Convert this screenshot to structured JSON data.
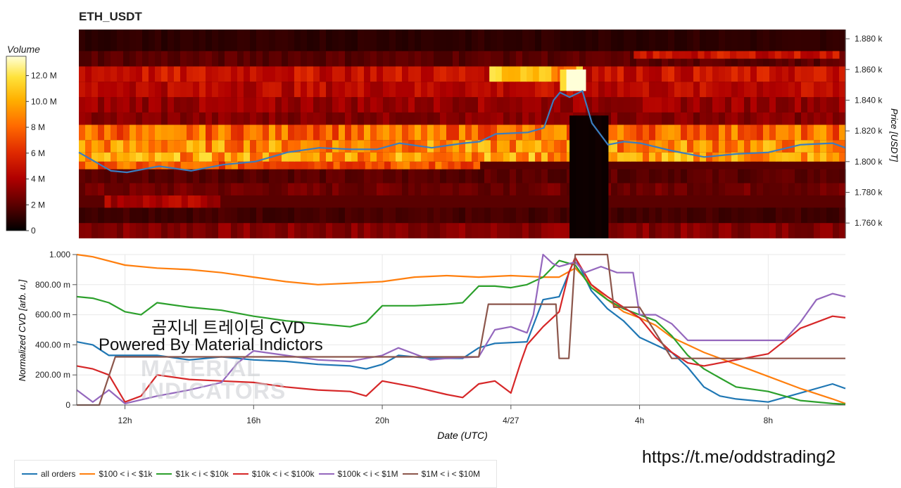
{
  "header": {
    "title": "ETH_USDT"
  },
  "colorbar": {
    "title": "Volume",
    "ticks": [
      "0",
      "2 M",
      "4 M",
      "6 M",
      "8 M",
      "10.0 M",
      "12.0 M"
    ],
    "tick_values": [
      0,
      2,
      4,
      6,
      8,
      10,
      12
    ],
    "max": 13.5,
    "colors": [
      "#000000",
      "#5c0000",
      "#b00000",
      "#e02a00",
      "#ff6a00",
      "#ffb000",
      "#ffe23a",
      "#ffffd8"
    ]
  },
  "overlay": {
    "line1": "곰지네 트레이딩 CVD",
    "line2": "Powered By Material Indictors",
    "watermark1": "MATERIAL",
    "watermark2": "INDICATORS",
    "url": "https://t.me/oddstrading2"
  },
  "chart_data": [
    {
      "type": "heatmap",
      "title": "ETH_USDT",
      "ylabel": "Price [USDT]",
      "ylim": [
        1750,
        1886
      ],
      "yticks": [
        "1.760 k",
        "1.780 k",
        "1.800 k",
        "1.820 k",
        "1.840 k",
        "1.860 k",
        "1.880 k"
      ],
      "ytick_values": [
        1760,
        1780,
        1800,
        1820,
        1840,
        1860,
        1880
      ],
      "x_range_hours": [
        10.5,
        34.4
      ],
      "price_bins": [
        1755,
        1765,
        1775,
        1785,
        1795,
        1805,
        1815,
        1825,
        1835,
        1845,
        1855,
        1865,
        1875,
        1884
      ],
      "volume_blocks_M": [
        {
          "hours": [
            10.5,
            34.4
          ],
          "price": [
            1750,
            1760
          ],
          "level": 3.0
        },
        {
          "hours": [
            10.5,
            34.4
          ],
          "price": [
            1760,
            1770
          ],
          "level": 1.5
        },
        {
          "hours": [
            11.3,
            14.9
          ],
          "price": [
            1770,
            1778
          ],
          "level": 4.0
        },
        {
          "hours": [
            10.5,
            34.4
          ],
          "price": [
            1778,
            1786
          ],
          "level": 2.5
        },
        {
          "hours": [
            10.5,
            34.4
          ],
          "price": [
            1786,
            1795
          ],
          "level": 2.0
        },
        {
          "hours": [
            10.5,
            23.0
          ],
          "price": [
            1795,
            1800
          ],
          "level": 7.5
        },
        {
          "hours": [
            10.5,
            34.4
          ],
          "price": [
            1800,
            1806
          ],
          "level": 9.5
        },
        {
          "hours": [
            10.5,
            34.4
          ],
          "price": [
            1806,
            1814
          ],
          "level": 9.0
        },
        {
          "hours": [
            10.5,
            34.4
          ],
          "price": [
            1814,
            1824
          ],
          "level": 8.0
        },
        {
          "hours": [
            10.5,
            34.4
          ],
          "price": [
            1824,
            1832
          ],
          "level": 3.0
        },
        {
          "hours": [
            10.5,
            34.4
          ],
          "price": [
            1832,
            1842
          ],
          "level": 3.5
        },
        {
          "hours": [
            10.5,
            34.4
          ],
          "price": [
            1842,
            1852
          ],
          "level": 4.5
        },
        {
          "hours": [
            10.5,
            34.4
          ],
          "price": [
            1852,
            1862
          ],
          "level": 5.0
        },
        {
          "hours": [
            23.3,
            26.2
          ],
          "price": [
            1852,
            1862
          ],
          "level": 10.0
        },
        {
          "hours": [
            25.5,
            26.3
          ],
          "price": [
            1846,
            1860
          ],
          "level": 12.5
        },
        {
          "hours": [
            10.5,
            34.4
          ],
          "price": [
            1862,
            1872
          ],
          "level": 2.0
        },
        {
          "hours": [
            27.8,
            34.2
          ],
          "price": [
            1867,
            1877
          ],
          "level": 5.0
        },
        {
          "hours": [
            10.5,
            34.4
          ],
          "price": [
            1872,
            1886
          ],
          "level": 1.0
        },
        {
          "hours": [
            25.8,
            27.0
          ],
          "price": [
            1750,
            1830
          ],
          "level": 0.3
        }
      ],
      "price_line": {
        "name": "price",
        "x": [
          10.5,
          11.0,
          11.5,
          12.0,
          13.0,
          14.0,
          15.0,
          16.0,
          17.0,
          18.0,
          19.0,
          19.8,
          20.5,
          21.5,
          22.5,
          23.0,
          23.5,
          24.5,
          25.0,
          25.3,
          25.5,
          25.8,
          26.2,
          26.5,
          27.0,
          27.5,
          28.0,
          29.0,
          30.0,
          31.0,
          32.0,
          33.0,
          34.0,
          34.4
        ],
        "y": [
          1806,
          1800,
          1794,
          1793,
          1797,
          1794,
          1798,
          1800,
          1806,
          1809,
          1808,
          1808,
          1812,
          1809,
          1812,
          1813,
          1818,
          1819,
          1822,
          1840,
          1845,
          1842,
          1846,
          1825,
          1811,
          1813,
          1812,
          1807,
          1803,
          1805,
          1806,
          1811,
          1812,
          1809
        ]
      }
    },
    {
      "type": "line",
      "xlabel": "Date (UTC)",
      "ylabel": "Normalized CVD [arb. u.]",
      "ylim": [
        0,
        1000
      ],
      "yticks": [
        "0",
        "200.00 m",
        "400.00 m",
        "600.00 m",
        "800.00 m",
        "1.000"
      ],
      "ytick_values": [
        0,
        200,
        400,
        600,
        800,
        1000
      ],
      "x_range_hours": [
        10.5,
        34.4
      ],
      "xticks": [
        "12h",
        "16h",
        "20h",
        "4/27",
        "4h",
        "8h"
      ],
      "xtick_values": [
        12,
        16,
        20,
        24,
        28,
        32
      ],
      "series": [
        {
          "name": "all orders",
          "color": "#1f77b4",
          "x": [
            10.5,
            11.0,
            11.5,
            12.0,
            13.0,
            14.0,
            15.0,
            16.0,
            17.0,
            18.0,
            19.0,
            19.5,
            20.0,
            20.5,
            21.5,
            22.5,
            23.0,
            23.5,
            24.5,
            25.0,
            25.5,
            26.0,
            26.5,
            27.0,
            27.5,
            28.0,
            28.5,
            29.0,
            29.5,
            30.0,
            30.5,
            31.0,
            32.0,
            33.0,
            34.0,
            34.4
          ],
          "y": [
            420,
            400,
            330,
            330,
            330,
            300,
            320,
            300,
            290,
            270,
            260,
            240,
            270,
            330,
            310,
            310,
            380,
            410,
            420,
            700,
            720,
            980,
            760,
            640,
            560,
            450,
            400,
            350,
            250,
            120,
            60,
            40,
            20,
            80,
            140,
            110
          ]
        },
        {
          "name": "$100 < i < $1k",
          "color": "#ff7f0e",
          "x": [
            10.5,
            11.0,
            12.0,
            13.0,
            14.0,
            15.0,
            16.0,
            17.0,
            18.0,
            19.0,
            20.0,
            21.0,
            22.0,
            23.0,
            24.0,
            25.0,
            25.5,
            26.0,
            26.5,
            27.0,
            27.5,
            28.0,
            28.5,
            29.0,
            29.5,
            30.0,
            31.0,
            32.0,
            33.0,
            34.0,
            34.4
          ],
          "y": [
            1000,
            985,
            930,
            910,
            900,
            880,
            850,
            820,
            800,
            810,
            820,
            850,
            860,
            850,
            860,
            850,
            850,
            910,
            800,
            700,
            620,
            580,
            530,
            450,
            400,
            350,
            270,
            190,
            110,
            40,
            10
          ]
        },
        {
          "name": "$1k < i < $10k",
          "color": "#2ca02c",
          "x": [
            10.5,
            11.0,
            11.5,
            12.0,
            12.5,
            13.0,
            14.0,
            15.0,
            16.0,
            17.0,
            18.0,
            19.0,
            19.5,
            20.0,
            21.0,
            22.0,
            22.5,
            23.0,
            23.5,
            24.0,
            24.5,
            25.0,
            25.5,
            26.0,
            26.5,
            27.0,
            27.5,
            28.0,
            28.5,
            29.0,
            29.5,
            30.0,
            30.5,
            31.0,
            32.0,
            33.0,
            34.0,
            34.4
          ],
          "y": [
            720,
            710,
            680,
            620,
            600,
            680,
            650,
            630,
            590,
            560,
            540,
            520,
            550,
            660,
            660,
            670,
            680,
            790,
            790,
            780,
            800,
            850,
            960,
            930,
            780,
            700,
            640,
            600,
            560,
            460,
            330,
            240,
            180,
            120,
            90,
            30,
            10,
            5
          ]
        },
        {
          "name": "$10k < i < $100k",
          "color": "#d62728",
          "x": [
            10.5,
            11.0,
            11.5,
            12.0,
            12.5,
            13.0,
            14.0,
            15.0,
            16.0,
            17.0,
            18.0,
            19.0,
            19.5,
            20.0,
            21.0,
            22.0,
            22.5,
            23.0,
            23.5,
            24.0,
            24.3,
            24.5,
            25.0,
            25.5,
            25.8,
            26.0,
            26.5,
            27.0,
            27.5,
            28.0,
            28.5,
            29.0,
            29.5,
            30.0,
            31.0,
            32.0,
            33.0,
            34.0,
            34.4
          ],
          "y": [
            260,
            240,
            200,
            20,
            60,
            200,
            170,
            160,
            150,
            120,
            100,
            90,
            60,
            160,
            120,
            70,
            50,
            140,
            160,
            80,
            280,
            400,
            520,
            620,
            880,
            980,
            800,
            720,
            650,
            580,
            450,
            350,
            280,
            260,
            300,
            340,
            510,
            590,
            580
          ]
        },
        {
          "name": "$100k < i < $1M",
          "color": "#9467bd",
          "x": [
            10.5,
            11.0,
            11.5,
            12.0,
            13.0,
            14.0,
            15.0,
            15.5,
            16.0,
            17.0,
            18.0,
            19.0,
            20.0,
            20.5,
            21.5,
            22.0,
            23.0,
            23.5,
            24.0,
            24.5,
            24.7,
            25.0,
            25.3,
            25.5,
            26.0,
            26.3,
            26.8,
            27.3,
            27.8,
            28.0,
            28.5,
            29.0,
            29.5,
            30.0,
            31.0,
            32.0,
            32.5,
            33.0,
            33.5,
            34.0,
            34.4
          ],
          "y": [
            100,
            20,
            100,
            10,
            60,
            100,
            150,
            280,
            360,
            330,
            300,
            290,
            330,
            380,
            300,
            310,
            320,
            500,
            520,
            480,
            600,
            1000,
            940,
            920,
            950,
            880,
            920,
            880,
            880,
            600,
            600,
            540,
            430,
            430,
            430,
            430,
            430,
            550,
            700,
            740,
            720
          ]
        },
        {
          "name": "$1M < i < $10M",
          "color": "#8c564b",
          "x": [
            10.5,
            11.2,
            11.7,
            12.0,
            16.0,
            20.0,
            21.0,
            22.0,
            22.8,
            23.0,
            23.3,
            24.0,
            25.0,
            25.4,
            25.5,
            25.8,
            26.0,
            26.2,
            26.5,
            27.0,
            27.2,
            27.3,
            27.5,
            28.0,
            29.0,
            29.2,
            30.0,
            31.0,
            32.0,
            33.0,
            34.0,
            34.4
          ],
          "y": [
            0,
            0,
            320,
            320,
            320,
            320,
            320,
            320,
            320,
            320,
            670,
            670,
            670,
            670,
            310,
            310,
            1000,
            1000,
            1000,
            1000,
            650,
            650,
            650,
            650,
            310,
            310,
            310,
            310,
            310,
            310,
            310,
            310
          ]
        }
      ]
    }
  ]
}
